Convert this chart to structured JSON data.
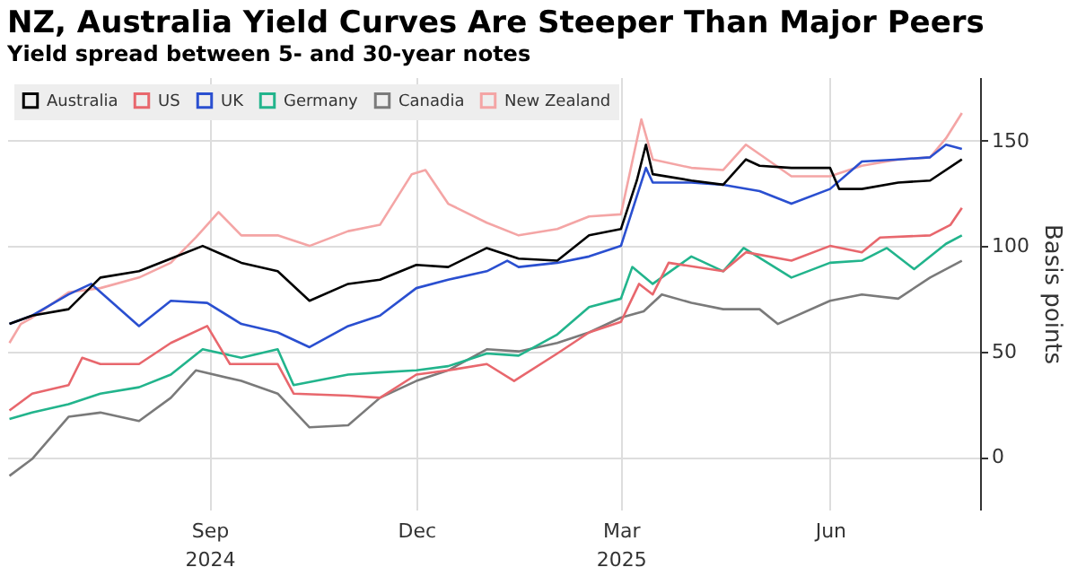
{
  "chart_data": {
    "type": "line",
    "title": "NZ, Australia Yield Curves Are Steeper Than Major Peers",
    "subtitle": "Yield spread between 5- and 30-year notes",
    "ylabel": "Basis points",
    "xlim": [
      "2024-06-04",
      "2025-08-06"
    ],
    "xticks": [
      {
        "value": "2024-09-01",
        "label": "Sep\n2024"
      },
      {
        "value": "2024-12-01",
        "label": "Dec"
      },
      {
        "value": "2025-03-01",
        "label": "Mar\n2025"
      },
      {
        "value": "2025-06-01",
        "label": "Jun"
      }
    ],
    "ylim": [
      -25,
      180
    ],
    "yticks": [
      0,
      50,
      100,
      150
    ],
    "grid": true,
    "legend": "top left",
    "series": [
      {
        "name": "Australia",
        "color": "#000000",
        "x": [
          "2024-06-05",
          "2024-06-15",
          "2024-07-01",
          "2024-07-15",
          "2024-08-01",
          "2024-08-15",
          "2024-08-29",
          "2024-09-15",
          "2024-10-01",
          "2024-10-15",
          "2024-11-01",
          "2024-11-15",
          "2024-12-01",
          "2024-12-15",
          "2025-01-01",
          "2025-01-15",
          "2025-02-01",
          "2025-02-15",
          "2025-03-01",
          "2025-03-08",
          "2025-03-12",
          "2025-03-15",
          "2025-04-01",
          "2025-04-15",
          "2025-04-25",
          "2025-05-01",
          "2025-05-15",
          "2025-06-01",
          "2025-06-05",
          "2025-06-15",
          "2025-07-01",
          "2025-07-15",
          "2025-07-29"
        ],
        "values": [
          63,
          67,
          70,
          85,
          88,
          94,
          100,
          92,
          88,
          74,
          82,
          84,
          91,
          90,
          99,
          94,
          93,
          105,
          108,
          131,
          148,
          134,
          131,
          129,
          141,
          138,
          137,
          137,
          127,
          127,
          130,
          131,
          141
        ]
      },
      {
        "name": "US",
        "color": "#e8676d",
        "x": [
          "2024-06-05",
          "2024-06-15",
          "2024-07-01",
          "2024-07-07",
          "2024-07-15",
          "2024-08-01",
          "2024-08-15",
          "2024-08-31",
          "2024-09-10",
          "2024-10-01",
          "2024-10-08",
          "2024-11-01",
          "2024-11-15",
          "2024-12-01",
          "2024-12-15",
          "2025-01-01",
          "2025-01-13",
          "2025-02-01",
          "2025-02-15",
          "2025-03-01",
          "2025-03-09",
          "2025-03-15",
          "2025-03-22",
          "2025-04-15",
          "2025-04-25",
          "2025-05-15",
          "2025-06-01",
          "2025-06-15",
          "2025-06-23",
          "2025-07-15",
          "2025-07-24",
          "2025-07-29"
        ],
        "values": [
          22,
          30,
          34,
          47,
          44,
          44,
          54,
          62,
          44,
          44,
          30,
          29,
          28,
          39,
          41,
          44,
          36,
          49,
          59,
          64,
          82,
          77,
          92,
          88,
          97,
          93,
          100,
          97,
          104,
          105,
          110,
          118
        ]
      },
      {
        "name": "UK",
        "color": "#2a4fd0",
        "x": [
          "2024-06-05",
          "2024-06-15",
          "2024-07-01",
          "2024-07-11",
          "2024-08-01",
          "2024-08-15",
          "2024-08-31",
          "2024-09-15",
          "2024-10-01",
          "2024-10-15",
          "2024-11-01",
          "2024-11-15",
          "2024-12-01",
          "2024-12-15",
          "2025-01-01",
          "2025-01-10",
          "2025-01-15",
          "2025-02-01",
          "2025-02-15",
          "2025-03-01",
          "2025-03-12",
          "2025-03-15",
          "2025-04-01",
          "2025-04-15",
          "2025-05-01",
          "2025-05-15",
          "2025-06-01",
          "2025-06-15",
          "2025-07-01",
          "2025-07-15",
          "2025-07-22",
          "2025-07-29"
        ],
        "values": [
          63,
          67,
          77,
          82,
          62,
          74,
          73,
          63,
          59,
          52,
          62,
          67,
          80,
          84,
          88,
          93,
          90,
          92,
          95,
          100,
          137,
          130,
          130,
          129,
          126,
          120,
          127,
          140,
          141,
          142,
          148,
          146
        ]
      },
      {
        "name": "Germany",
        "color": "#22b48c",
        "x": [
          "2024-06-05",
          "2024-06-15",
          "2024-07-01",
          "2024-07-15",
          "2024-08-01",
          "2024-08-15",
          "2024-08-29",
          "2024-09-15",
          "2024-10-01",
          "2024-10-08",
          "2024-11-01",
          "2024-11-15",
          "2024-12-01",
          "2024-12-15",
          "2025-01-01",
          "2025-01-15",
          "2025-02-01",
          "2025-02-15",
          "2025-03-01",
          "2025-03-06",
          "2025-03-15",
          "2025-04-01",
          "2025-04-15",
          "2025-04-24",
          "2025-05-15",
          "2025-06-01",
          "2025-06-15",
          "2025-06-26",
          "2025-07-08",
          "2025-07-22",
          "2025-07-29"
        ],
        "values": [
          18,
          21,
          25,
          30,
          33,
          39,
          51,
          47,
          51,
          34,
          39,
          40,
          41,
          43,
          49,
          48,
          58,
          71,
          75,
          90,
          82,
          95,
          88,
          99,
          85,
          92,
          93,
          99,
          89,
          101,
          105
        ]
      },
      {
        "name": "Canadia",
        "color": "#7a7a7a",
        "x": [
          "2024-06-05",
          "2024-06-15",
          "2024-07-01",
          "2024-07-15",
          "2024-08-01",
          "2024-08-15",
          "2024-08-26",
          "2024-09-15",
          "2024-10-01",
          "2024-10-15",
          "2024-11-01",
          "2024-11-15",
          "2024-12-01",
          "2024-12-15",
          "2025-01-01",
          "2025-01-15",
          "2025-02-01",
          "2025-02-15",
          "2025-03-01",
          "2025-03-11",
          "2025-03-19",
          "2025-04-01",
          "2025-04-15",
          "2025-05-01",
          "2025-05-09",
          "2025-06-01",
          "2025-06-15",
          "2025-07-01",
          "2025-07-15",
          "2025-07-29"
        ],
        "values": [
          -9,
          -1,
          19,
          21,
          17,
          28,
          41,
          36,
          30,
          14,
          15,
          28,
          36,
          41,
          51,
          50,
          54,
          59,
          66,
          69,
          77,
          73,
          70,
          70,
          63,
          74,
          77,
          75,
          85,
          93
        ]
      },
      {
        "name": "New Zealand",
        "color": "#f4a5a5",
        "x": [
          "2024-06-05",
          "2024-06-10",
          "2024-06-15",
          "2024-07-01",
          "2024-07-15",
          "2024-08-01",
          "2024-08-15",
          "2024-08-26",
          "2024-09-05",
          "2024-09-15",
          "2024-10-01",
          "2024-10-15",
          "2024-11-01",
          "2024-11-15",
          "2024-11-29",
          "2024-12-05",
          "2024-12-15",
          "2025-01-01",
          "2025-01-15",
          "2025-02-01",
          "2025-02-15",
          "2025-03-01",
          "2025-03-10",
          "2025-03-15",
          "2025-04-01",
          "2025-04-15",
          "2025-04-25",
          "2025-05-15",
          "2025-06-01",
          "2025-06-15",
          "2025-07-01",
          "2025-07-15",
          "2025-07-22",
          "2025-07-29"
        ],
        "values": [
          54,
          63,
          66,
          78,
          80,
          85,
          92,
          104,
          116,
          105,
          105,
          100,
          107,
          110,
          134,
          136,
          120,
          111,
          105,
          108,
          114,
          115,
          160,
          141,
          137,
          136,
          148,
          133,
          133,
          138,
          141,
          142,
          151,
          163
        ]
      }
    ]
  }
}
